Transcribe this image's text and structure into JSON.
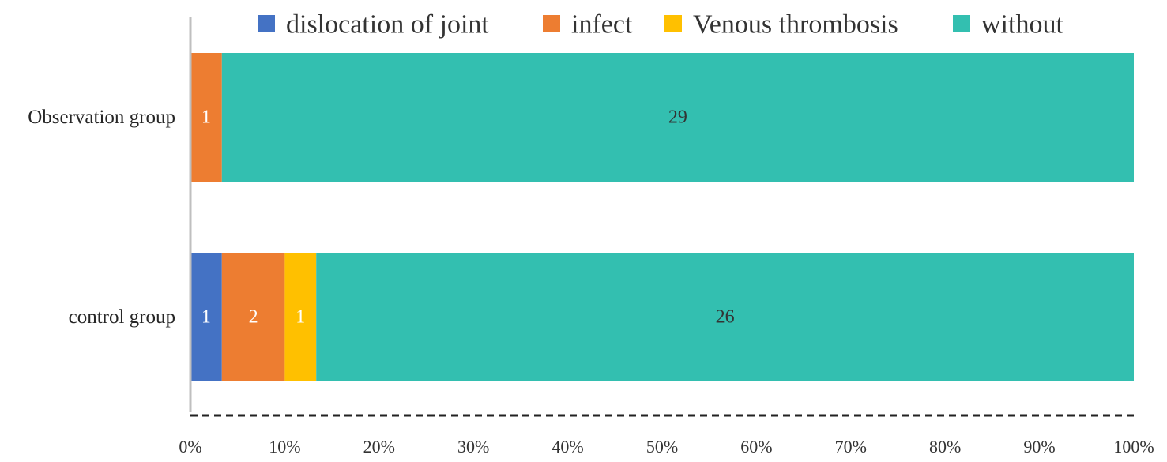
{
  "chart_data": {
    "type": "bar",
    "orientation": "horizontal",
    "stacked": "percent",
    "categories": [
      "Observation group",
      "control group"
    ],
    "series": [
      {
        "name": "dislocation of joint",
        "values": [
          0,
          1
        ],
        "color": "#4472C4"
      },
      {
        "name": "infect",
        "values": [
          1,
          2
        ],
        "color": "#ED7D31"
      },
      {
        "name": "Venous thrombosis",
        "values": [
          0,
          1
        ],
        "color": "#FFC000"
      },
      {
        "name": "without",
        "values": [
          29,
          26
        ],
        "color": "#33BFB0"
      }
    ],
    "xlim": [
      0,
      100
    ],
    "x_ticks": [
      "0%",
      "10%",
      "20%",
      "30%",
      "40%",
      "50%",
      "60%",
      "70%",
      "80%",
      "90%",
      "100%"
    ],
    "legend_position": "top",
    "grid": false,
    "data_label_colors": {
      "light": "#ffffff",
      "dark": "#333333"
    }
  }
}
